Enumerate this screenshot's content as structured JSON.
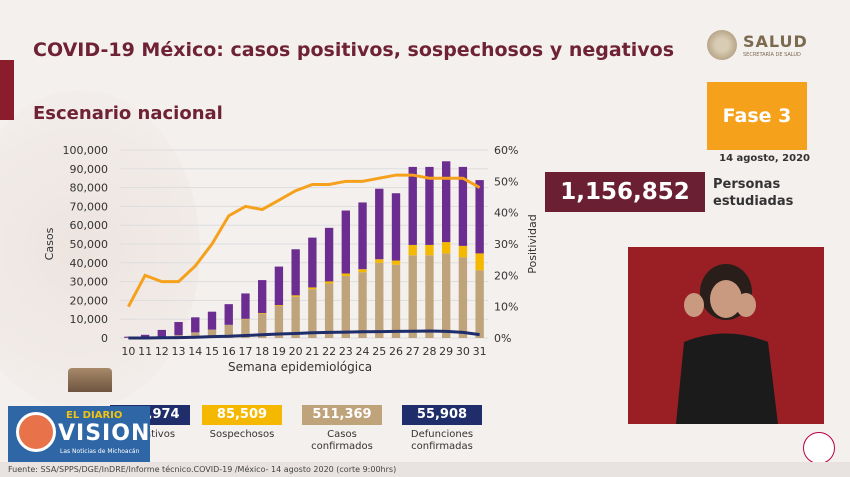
{
  "title": "COVID-19 México: casos positivos, sospechosos y negativos",
  "subtitle": "Escenario nacional",
  "logo": {
    "name": "SALUD",
    "sub": "SECRETARÍA DE SALUD"
  },
  "phase": "Fase 3",
  "date": "14 agosto, 2020",
  "total_people": "1,156,852",
  "total_label_1": "Personas",
  "total_label_2": "estudiadas",
  "summary_cards": [
    {
      "value": "559,974",
      "label": "Negativos",
      "color": "#6b2d8f"
    },
    {
      "value": "85,509",
      "label": "Sospechosos",
      "color": "#f5b800"
    },
    {
      "value": "511,369",
      "label_1": "Casos",
      "label_2": "confirmados",
      "color": "#bfa37a"
    },
    {
      "value": "55,908",
      "label_1": "Defunciones",
      "label_2": "confirmadas",
      "color": "#1f2d6b"
    }
  ],
  "brand": {
    "line1": "EL DIARIO",
    "line2": "VISION",
    "line3": "Las Noticias de Michoacán"
  },
  "footer": "Fuente: SSA/SPPS/DGE/InDRE/Informe técnico.COVID-19 /México- 14 agosto 2020 (corte 9:00hrs)",
  "chart_data": {
    "type": "bar",
    "xlabel": "Semana epidemiológica",
    "ylabel": "Casos",
    "y2label": "Positividad",
    "ylim": [
      0,
      100000
    ],
    "y2lim": [
      0,
      60
    ],
    "y_ticks": [
      "0",
      "10,000",
      "20,000",
      "30,000",
      "40,000",
      "50,000",
      "60,000",
      "70,000",
      "80,000",
      "90,000",
      "100,000"
    ],
    "y2_ticks": [
      "0%",
      "10%",
      "20%",
      "30%",
      "40%",
      "50%",
      "60%"
    ],
    "categories": [
      "10",
      "11",
      "12",
      "13",
      "14",
      "15",
      "16",
      "17",
      "18",
      "19",
      "20",
      "21",
      "22",
      "23",
      "24",
      "25",
      "26",
      "27",
      "28",
      "29",
      "30",
      "31"
    ],
    "series": [
      {
        "name": "Casos confirmados",
        "color": "#bfa37a",
        "values": [
          100,
          300,
          800,
          1500,
          3000,
          4500,
          7000,
          10000,
          13000,
          17000,
          22000,
          26000,
          29000,
          33000,
          35000,
          40000,
          39000,
          44000,
          44000,
          45000,
          43000,
          36000
        ]
      },
      {
        "name": "Sospechosos",
        "color": "#f5b800",
        "values": [
          0,
          0,
          0,
          0,
          0,
          0,
          0,
          200,
          300,
          500,
          700,
          900,
          1100,
          1300,
          1600,
          1900,
          2200,
          5500,
          5500,
          6000,
          6000,
          9000
        ]
      },
      {
        "name": "Negativos",
        "color": "#6b2d8f",
        "values": [
          600,
          1400,
          3500,
          7000,
          8000,
          9500,
          11000,
          13500,
          17500,
          20500,
          24500,
          26500,
          28500,
          33500,
          35500,
          37500,
          35800,
          41500,
          41500,
          43000,
          42000,
          39000
        ]
      },
      {
        "name": "Defunciones",
        "color": "#1f2d6b",
        "type": "line",
        "values": [
          0,
          0,
          100,
          200,
          400,
          700,
          900,
          1300,
          1700,
          2100,
          2400,
          2800,
          3000,
          3100,
          3300,
          3400,
          3500,
          3600,
          3700,
          3500,
          3000,
          1800
        ]
      },
      {
        "name": "Positividad",
        "color": "#f5a11c",
        "type": "line",
        "axis": "right",
        "values": [
          10,
          20,
          18,
          18,
          23,
          30,
          39,
          42,
          41,
          44,
          47,
          49,
          49,
          50,
          50,
          51,
          52,
          52,
          51,
          51,
          51,
          48
        ]
      }
    ]
  }
}
